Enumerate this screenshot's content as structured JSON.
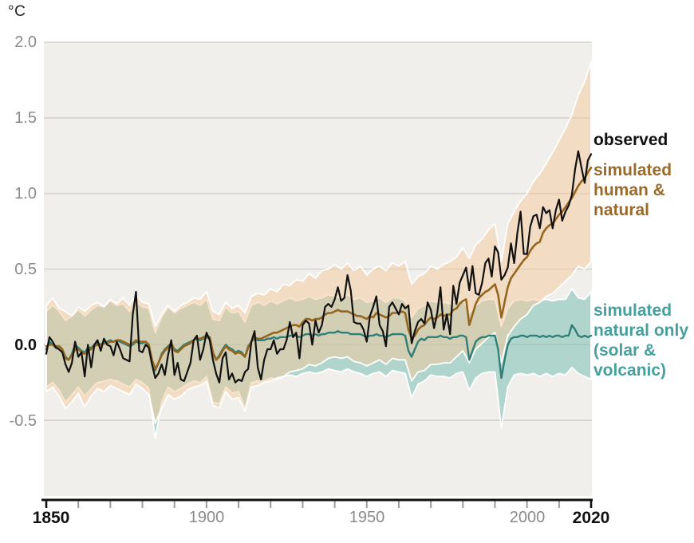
{
  "axes": {
    "unit": "°C",
    "y_ticks": [
      "2.0",
      "1.5",
      "1.0",
      "0.5",
      "0.0",
      "-0.5"
    ],
    "x_ticks": [
      "1850",
      "1900",
      "1950",
      "2000",
      "2020"
    ]
  },
  "legend": {
    "observed": "observed",
    "human_natural": "simulated\nhuman &\nnatural",
    "natural_only": "simulated\nnatural only\n(solar &\nvolcanic)"
  },
  "colors": {
    "observed_line": "#111111",
    "human_natural_line": "#96661e",
    "natural_only_line": "#2f7f78",
    "human_natural_band": "rgba(243,201,156,0.5)",
    "natural_only_band": "rgba(111,187,176,0.5)",
    "plot_background": "#f1efeb",
    "gridline": "#d6d2ce",
    "axis": "#111111"
  },
  "chart_data": {
    "type": "line",
    "ylabel": "°C",
    "xlim": [
      1850,
      2020
    ],
    "ylim": [
      -1.0,
      2.0
    ],
    "x_tick_years": [
      1850,
      1900,
      1950,
      2000,
      2020
    ],
    "x_minor_tick_step": 10,
    "y_gridlines": [
      2.0,
      1.5,
      1.0,
      0.5,
      0.0,
      -0.5
    ],
    "plot_bg": "#f1efeb",
    "grid_color": "#d6d2ce",
    "legend_position": "right",
    "bands": [
      {
        "name": "simulated natural only range",
        "fill": "rgba(111,187,176,0.5)",
        "edge": "#ffffff",
        "x_start": 1850,
        "x_step": 2,
        "upper": [
          0.22,
          0.26,
          0.22,
          0.16,
          0.19,
          0.23,
          0.19,
          0.23,
          0.26,
          0.25,
          0.29,
          0.26,
          0.27,
          0.22,
          0.28,
          0.25,
          0.24,
          0.08,
          0.18,
          0.25,
          0.21,
          0.24,
          0.26,
          0.28,
          0.26,
          0.3,
          0.17,
          0.16,
          0.25,
          0.21,
          0.22,
          0.15,
          0.26,
          0.28,
          0.26,
          0.29,
          0.27,
          0.29,
          0.31,
          0.29,
          0.3,
          0.32,
          0.3,
          0.31,
          0.33,
          0.32,
          0.31,
          0.33,
          0.3,
          0.31,
          0.28,
          0.29,
          0.31,
          0.28,
          0.31,
          0.31,
          0.29,
          0.18,
          0.24,
          0.26,
          0.29,
          0.28,
          0.28,
          0.27,
          0.29,
          0.3,
          0.21,
          0.26,
          0.29,
          0.3,
          0.3,
          0.12,
          0.24,
          0.29,
          0.3,
          0.29,
          0.3,
          0.29,
          0.3,
          0.29,
          0.3,
          0.3,
          0.37,
          0.31,
          0.3,
          0.35
        ],
        "lower": [
          -0.28,
          -0.25,
          -0.3,
          -0.38,
          -0.33,
          -0.28,
          -0.34,
          -0.29,
          -0.25,
          -0.24,
          -0.23,
          -0.24,
          -0.26,
          -0.28,
          -0.23,
          -0.25,
          -0.29,
          -0.62,
          -0.38,
          -0.28,
          -0.31,
          -0.29,
          -0.26,
          -0.24,
          -0.25,
          -0.21,
          -0.38,
          -0.39,
          -0.28,
          -0.32,
          -0.31,
          -0.42,
          -0.25,
          -0.24,
          -0.24,
          -0.22,
          -0.23,
          -0.21,
          -0.2,
          -0.21,
          -0.19,
          -0.18,
          -0.19,
          -0.18,
          -0.16,
          -0.17,
          -0.18,
          -0.16,
          -0.18,
          -0.19,
          -0.21,
          -0.19,
          -0.18,
          -0.21,
          -0.17,
          -0.18,
          -0.19,
          -0.35,
          -0.26,
          -0.24,
          -0.2,
          -0.21,
          -0.21,
          -0.22,
          -0.19,
          -0.18,
          -0.3,
          -0.22,
          -0.19,
          -0.18,
          -0.18,
          -0.55,
          -0.28,
          -0.2,
          -0.19,
          -0.2,
          -0.19,
          -0.21,
          -0.19,
          -0.21,
          -0.19,
          -0.2,
          -0.15,
          -0.19,
          -0.21,
          -0.23
        ]
      },
      {
        "name": "simulated human & natural range",
        "fill": "rgba(243,201,156,0.5)",
        "edge": "#ffffff",
        "x_start": 1850,
        "x_step": 2,
        "upper": [
          0.26,
          0.31,
          0.24,
          0.22,
          0.19,
          0.25,
          0.22,
          0.26,
          0.28,
          0.25,
          0.3,
          0.27,
          0.31,
          0.26,
          0.33,
          0.28,
          0.27,
          0.12,
          0.2,
          0.26,
          0.22,
          0.26,
          0.28,
          0.31,
          0.3,
          0.35,
          0.22,
          0.2,
          0.28,
          0.24,
          0.26,
          0.21,
          0.32,
          0.34,
          0.33,
          0.37,
          0.35,
          0.4,
          0.39,
          0.43,
          0.42,
          0.47,
          0.44,
          0.49,
          0.5,
          0.53,
          0.5,
          0.54,
          0.49,
          0.52,
          0.46,
          0.5,
          0.52,
          0.49,
          0.54,
          0.52,
          0.55,
          0.4,
          0.45,
          0.47,
          0.52,
          0.5,
          0.53,
          0.55,
          0.58,
          0.64,
          0.57,
          0.66,
          0.7,
          0.76,
          0.8,
          0.55,
          0.8,
          0.88,
          0.95,
          1.0,
          1.08,
          1.13,
          1.2,
          1.27,
          1.35,
          1.43,
          1.52,
          1.65,
          1.74,
          1.87
        ],
        "lower": [
          -0.31,
          -0.28,
          -0.34,
          -0.42,
          -0.38,
          -0.32,
          -0.41,
          -0.34,
          -0.29,
          -0.31,
          -0.27,
          -0.29,
          -0.31,
          -0.33,
          -0.26,
          -0.29,
          -0.33,
          -0.52,
          -0.42,
          -0.33,
          -0.36,
          -0.34,
          -0.3,
          -0.28,
          -0.27,
          -0.24,
          -0.4,
          -0.42,
          -0.31,
          -0.36,
          -0.35,
          -0.44,
          -0.28,
          -0.27,
          -0.25,
          -0.24,
          -0.22,
          -0.21,
          -0.18,
          -0.17,
          -0.16,
          -0.13,
          -0.14,
          -0.12,
          -0.09,
          -0.08,
          -0.09,
          -0.08,
          -0.11,
          -0.12,
          -0.14,
          -0.12,
          -0.1,
          -0.13,
          -0.09,
          -0.1,
          -0.1,
          -0.24,
          -0.18,
          -0.17,
          -0.13,
          -0.13,
          -0.12,
          -0.12,
          -0.08,
          -0.04,
          -0.12,
          -0.03,
          0.01,
          0.05,
          0.08,
          -0.12,
          0.06,
          0.12,
          0.17,
          0.2,
          0.26,
          0.28,
          0.32,
          0.34,
          0.38,
          0.42,
          0.46,
          0.52,
          0.5,
          0.55
        ]
      }
    ],
    "series": [
      {
        "name": "simulated natural only (solar & volcanic)",
        "color": "#2f7f78",
        "width": 2.4,
        "x_start": 1850,
        "x_step": 1,
        "values": [
          -0.03,
          0.02,
          0.0,
          -0.02,
          -0.01,
          -0.03,
          -0.08,
          -0.1,
          -0.06,
          0.0,
          -0.02,
          -0.04,
          -0.05,
          -0.02,
          -0.02,
          0.0,
          0.01,
          0.0,
          0.02,
          0.02,
          0.03,
          0.02,
          0.03,
          0.02,
          0.01,
          0.0,
          -0.01,
          0.0,
          0.02,
          0.01,
          0.01,
          0.02,
          -0.01,
          -0.12,
          -0.17,
          -0.12,
          -0.06,
          -0.03,
          -0.01,
          0.01,
          -0.03,
          -0.04,
          -0.02,
          0.0,
          0.01,
          0.02,
          0.03,
          0.04,
          0.03,
          0.04,
          0.05,
          0.04,
          -0.06,
          -0.1,
          -0.07,
          -0.03,
          0.0,
          -0.02,
          -0.03,
          -0.05,
          -0.04,
          -0.05,
          -0.08,
          -0.01,
          0.02,
          0.04,
          0.03,
          0.03,
          0.03,
          0.04,
          0.04,
          0.05,
          0.04,
          0.05,
          0.05,
          0.05,
          0.06,
          0.06,
          0.06,
          0.05,
          0.06,
          0.07,
          0.07,
          0.06,
          0.07,
          0.06,
          0.07,
          0.07,
          0.08,
          0.08,
          0.08,
          0.09,
          0.08,
          0.08,
          0.08,
          0.07,
          0.07,
          0.07,
          0.07,
          0.06,
          0.05,
          0.06,
          0.06,
          0.07,
          0.06,
          0.06,
          0.05,
          0.06,
          0.07,
          0.07,
          0.07,
          0.07,
          0.06,
          -0.04,
          -0.08,
          -0.03,
          0.02,
          0.04,
          0.03,
          0.05,
          0.05,
          0.05,
          0.05,
          0.06,
          0.05,
          0.05,
          0.04,
          0.05,
          0.05,
          0.06,
          0.06,
          0.05,
          -0.1,
          -0.04,
          0.02,
          0.04,
          0.05,
          0.05,
          0.06,
          0.06,
          0.06,
          -0.03,
          -0.22,
          -0.1,
          0.0,
          0.04,
          0.05,
          0.05,
          0.06,
          0.06,
          0.05,
          0.06,
          0.06,
          0.06,
          0.05,
          0.06,
          0.05,
          0.06,
          0.05,
          0.06,
          0.06,
          0.05,
          0.06,
          0.06,
          0.13,
          0.1,
          0.06,
          0.05,
          0.06,
          0.05,
          0.06
        ]
      },
      {
        "name": "simulated human & natural",
        "color": "#96661e",
        "width": 2.6,
        "x_start": 1850,
        "x_step": 1,
        "values": [
          -0.01,
          0.0,
          0.0,
          -0.01,
          -0.01,
          -0.03,
          -0.09,
          -0.1,
          -0.07,
          -0.03,
          -0.03,
          -0.05,
          -0.06,
          -0.04,
          -0.03,
          -0.01,
          0.0,
          0.0,
          0.01,
          0.01,
          0.02,
          0.02,
          0.03,
          0.03,
          0.02,
          0.01,
          0.0,
          0.01,
          0.03,
          0.02,
          0.02,
          0.02,
          0.0,
          -0.1,
          -0.16,
          -0.12,
          -0.07,
          -0.04,
          -0.02,
          0.01,
          -0.04,
          -0.05,
          -0.03,
          -0.01,
          0.0,
          0.01,
          0.03,
          0.04,
          0.04,
          0.05,
          0.06,
          0.05,
          -0.05,
          -0.1,
          -0.08,
          -0.04,
          -0.01,
          -0.03,
          -0.04,
          -0.06,
          -0.05,
          -0.06,
          -0.08,
          -0.02,
          0.02,
          0.05,
          0.04,
          0.04,
          0.05,
          0.06,
          0.07,
          0.08,
          0.08,
          0.09,
          0.1,
          0.11,
          0.12,
          0.13,
          0.13,
          0.12,
          0.15,
          0.17,
          0.17,
          0.16,
          0.17,
          0.17,
          0.18,
          0.2,
          0.21,
          0.21,
          0.22,
          0.23,
          0.22,
          0.22,
          0.22,
          0.21,
          0.2,
          0.19,
          0.19,
          0.18,
          0.17,
          0.19,
          0.18,
          0.21,
          0.2,
          0.19,
          0.18,
          0.19,
          0.21,
          0.21,
          0.21,
          0.22,
          0.21,
          0.1,
          0.04,
          0.06,
          0.1,
          0.12,
          0.13,
          0.16,
          0.18,
          0.17,
          0.18,
          0.2,
          0.19,
          0.2,
          0.2,
          0.23,
          0.24,
          0.27,
          0.29,
          0.3,
          0.13,
          0.2,
          0.27,
          0.31,
          0.33,
          0.35,
          0.36,
          0.38,
          0.4,
          0.33,
          0.18,
          0.28,
          0.38,
          0.44,
          0.47,
          0.5,
          0.53,
          0.56,
          0.58,
          0.62,
          0.65,
          0.67,
          0.68,
          0.74,
          0.77,
          0.79,
          0.8,
          0.83,
          0.86,
          0.88,
          0.91,
          0.94,
          0.97,
          1.01,
          1.05,
          1.08,
          1.1,
          1.14,
          1.17
        ]
      },
      {
        "name": "observed",
        "color": "#111111",
        "width": 2.2,
        "x_start": 1850,
        "x_step": 1,
        "values": [
          -0.06,
          0.05,
          0.02,
          -0.02,
          -0.03,
          -0.05,
          -0.13,
          -0.18,
          -0.12,
          0.02,
          -0.08,
          -0.05,
          -0.21,
          0.0,
          -0.15,
          0.0,
          0.03,
          -0.04,
          0.04,
          0.0,
          -0.01,
          -0.07,
          0.02,
          -0.03,
          -0.09,
          -0.1,
          -0.11,
          0.2,
          0.35,
          -0.04,
          -0.05,
          0.0,
          -0.02,
          -0.13,
          -0.22,
          -0.19,
          -0.13,
          -0.2,
          -0.07,
          0.03,
          -0.2,
          -0.12,
          -0.23,
          -0.24,
          -0.18,
          -0.12,
          0.03,
          0.06,
          -0.1,
          -0.03,
          0.08,
          0.03,
          -0.1,
          -0.19,
          -0.25,
          -0.09,
          -0.05,
          -0.23,
          -0.19,
          -0.25,
          -0.23,
          -0.24,
          -0.18,
          -0.16,
          0.02,
          0.09,
          -0.15,
          -0.23,
          -0.1,
          -0.03,
          -0.03,
          0.03,
          -0.06,
          -0.03,
          -0.03,
          0.03,
          0.15,
          0.05,
          0.08,
          -0.09,
          0.13,
          0.16,
          0.14,
          0.0,
          0.16,
          0.08,
          0.13,
          0.25,
          0.27,
          0.25,
          0.3,
          0.38,
          0.29,
          0.31,
          0.46,
          0.36,
          0.15,
          0.14,
          0.14,
          0.1,
          0.02,
          0.19,
          0.25,
          0.32,
          0.13,
          0.09,
          -0.01,
          0.25,
          0.28,
          0.24,
          0.2,
          0.27,
          0.24,
          0.26,
          0.01,
          0.09,
          0.15,
          0.17,
          0.14,
          0.28,
          0.23,
          0.11,
          0.21,
          0.38,
          0.1,
          0.2,
          0.07,
          0.39,
          0.27,
          0.41,
          0.46,
          0.51,
          0.36,
          0.52,
          0.34,
          0.33,
          0.41,
          0.54,
          0.57,
          0.45,
          0.65,
          0.61,
          0.43,
          0.46,
          0.51,
          0.67,
          0.54,
          0.74,
          0.88,
          0.6,
          0.6,
          0.78,
          0.85,
          0.86,
          0.77,
          0.91,
          0.87,
          0.89,
          0.77,
          0.89,
          0.96,
          0.82,
          0.88,
          0.92,
          0.99,
          1.16,
          1.28,
          1.17,
          1.07,
          1.22,
          1.26
        ]
      }
    ]
  }
}
